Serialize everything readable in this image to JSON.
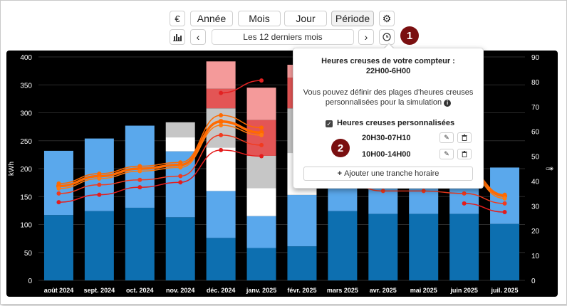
{
  "toolbar": {
    "currency_label": "€",
    "tabs": [
      {
        "label": "Année"
      },
      {
        "label": "Mois"
      },
      {
        "label": "Jour"
      },
      {
        "label": "Période"
      }
    ],
    "period_label": "Les 12 derniers mois",
    "prev_label": "‹",
    "next_label": "›"
  },
  "badges": {
    "one": "1",
    "two": "2"
  },
  "popup": {
    "title_line1": "Heures creuses de votre compteur :",
    "title_line2": "22H00-6H00",
    "desc_line1": "Vous pouvez définir des plages d'heures creuses",
    "desc_line2": "personnalisées pour la simulation",
    "checkbox_label": "Heures creuses personnalisées",
    "checkbox_checked": true,
    "ranges": [
      {
        "label": "20H30-07H10"
      },
      {
        "label": "10H00-14H00"
      }
    ],
    "add_label": "Ajouter une tranche horaire"
  },
  "chart_data": {
    "type": "bar",
    "categories": [
      "août 2024",
      "sept. 2024",
      "oct. 2024",
      "nov. 2024",
      "déc. 2024",
      "janv. 2025",
      "févr. 2025",
      "mars 2025",
      "avr. 2025",
      "mai 2025",
      "juin 2025",
      "juil. 2025"
    ],
    "ylabel": "kWh",
    "ylim": [
      0,
      400
    ],
    "y_ticks": [
      "0",
      "50",
      "100",
      "150",
      "200",
      "250",
      "300",
      "350",
      "400"
    ],
    "y2lim": [
      0,
      90
    ],
    "y2_ticks": [
      "0",
      "10",
      "20",
      "30",
      "40",
      "50",
      "60",
      "70",
      "80",
      "90"
    ],
    "y2_label": "🌡",
    "grid": true,
    "background": "#000000",
    "stacked_series": [
      {
        "color": "#0d6fb0",
        "values": [
          117,
          124,
          130,
          113,
          76,
          58,
          61,
          124,
          119,
          119,
          119,
          101
        ]
      },
      {
        "color": "#5aa8ec",
        "values": [
          115,
          130,
          147,
          118,
          84,
          57,
          92,
          72,
          83,
          84,
          83,
          101
        ]
      },
      {
        "color": "#ffffff",
        "values": [
          0,
          0,
          0,
          25,
          78,
          50,
          75,
          0,
          0,
          0,
          0,
          0
        ]
      },
      {
        "color": "#c6c6c6",
        "values": [
          0,
          0,
          0,
          27,
          70,
          58,
          80,
          0,
          0,
          0,
          0,
          0
        ]
      },
      {
        "color": "#e35555",
        "values": [
          0,
          0,
          0,
          0,
          35,
          64,
          55,
          0,
          0,
          0,
          0,
          0
        ]
      },
      {
        "color": "#f49a9a",
        "values": [
          0,
          0,
          0,
          0,
          49,
          58,
          23,
          0,
          0,
          0,
          0,
          0
        ]
      }
    ],
    "line_series": [
      {
        "color": "#e32222",
        "width": 1.5,
        "values": [
          null,
          null,
          null,
          null,
          75.5,
          80.5,
          null,
          null,
          null,
          null,
          null,
          null
        ]
      },
      {
        "color": "#ff6a00",
        "width": 1.5,
        "values": [
          39,
          43,
          46,
          47.5,
          66.5,
          61.5,
          null,
          null,
          null,
          null,
          45.5,
          34.5
        ]
      },
      {
        "color": "#ff6a00",
        "width": 3.5,
        "values": [
          38,
          42,
          45,
          46.5,
          64,
          59.5,
          null,
          null,
          null,
          null,
          44.5,
          34
        ]
      },
      {
        "color": "#ff7a10",
        "width": 1.5,
        "values": [
          37,
          41,
          44,
          45.5,
          62.5,
          58.5,
          null,
          null,
          null,
          null,
          43.5,
          33
        ]
      },
      {
        "color": "#f23a1e",
        "width": 1.5,
        "values": [
          35,
          38.5,
          40.5,
          42,
          58.5,
          54.5,
          null,
          40,
          36,
          36,
          35,
          31
        ]
      },
      {
        "color": "#e41c1c",
        "width": 1.5,
        "values": [
          31.5,
          34.5,
          37.5,
          39.5,
          52.5,
          50,
          null,
          null,
          null,
          null,
          31,
          27.5
        ]
      }
    ]
  }
}
